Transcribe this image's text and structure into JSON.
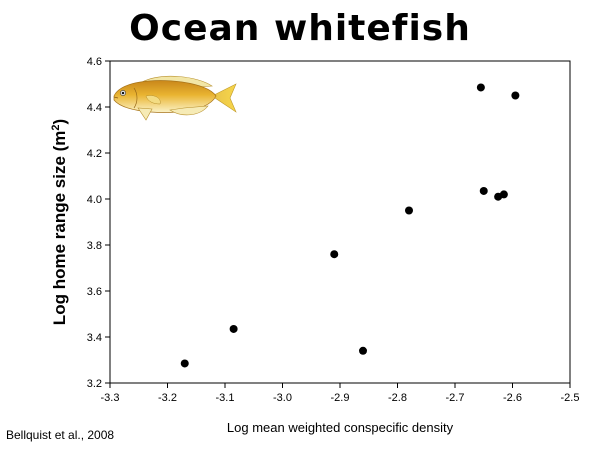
{
  "title": "Ocean whitefish",
  "citation": "Bellquist et al., 2008",
  "fish_icon": "ocean-whitefish-illustration",
  "chart_data": {
    "type": "scatter",
    "title": "Ocean whitefish",
    "xlabel": "Log mean weighted conspecific density",
    "ylabel_main": "Log home range size (m",
    "ylabel_sup": "2",
    "ylabel_close": ")",
    "xlim": [
      -3.3,
      -2.5
    ],
    "ylim": [
      3.2,
      4.6
    ],
    "xticks": [
      -3.3,
      -3.2,
      -3.1,
      -3.0,
      -2.9,
      -2.8,
      -2.7,
      -2.6,
      -2.5
    ],
    "xtick_labels": [
      "-3.3",
      "-3.2",
      "-3.1",
      "-3.0",
      "-2.9",
      "-2.8",
      "-2.7",
      "-2.6",
      "-2.5"
    ],
    "yticks": [
      3.2,
      3.4,
      3.6,
      3.8,
      4.0,
      4.2,
      4.4,
      4.6
    ],
    "ytick_labels": [
      "3.2",
      "3.4",
      "3.6",
      "3.8",
      "4.0",
      "4.2",
      "4.4",
      "4.6"
    ],
    "grid": false,
    "marker_color": "#000000",
    "points": [
      {
        "x": -3.17,
        "y": 3.285
      },
      {
        "x": -3.085,
        "y": 3.435
      },
      {
        "x": -2.91,
        "y": 3.76
      },
      {
        "x": -2.86,
        "y": 3.34
      },
      {
        "x": -2.78,
        "y": 3.95
      },
      {
        "x": -2.655,
        "y": 4.485
      },
      {
        "x": -2.65,
        "y": 4.035
      },
      {
        "x": -2.625,
        "y": 4.01
      },
      {
        "x": -2.615,
        "y": 4.02
      },
      {
        "x": -2.595,
        "y": 4.45
      }
    ]
  }
}
